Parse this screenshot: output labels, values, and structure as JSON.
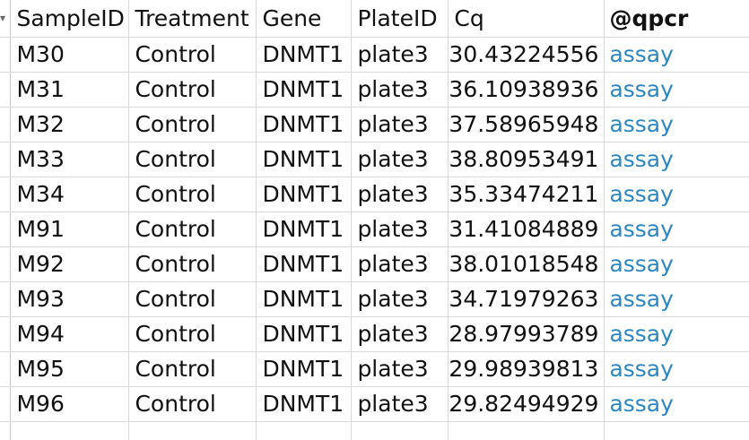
{
  "sheet": {
    "row_header_marker": "▾",
    "columns": [
      "SampleID",
      "Treatment",
      "Gene",
      "PlateID",
      "Cq",
      "@qpcr"
    ],
    "rows": [
      {
        "sample_id": "M30",
        "treatment": "Control",
        "gene": "DNMT1",
        "plate_id": "plate3",
        "cq": "30.43224556",
        "link": "assay"
      },
      {
        "sample_id": "M31",
        "treatment": "Control",
        "gene": "DNMT1",
        "plate_id": "plate3",
        "cq": "36.10938936",
        "link": "assay"
      },
      {
        "sample_id": "M32",
        "treatment": "Control",
        "gene": "DNMT1",
        "plate_id": "plate3",
        "cq": "37.58965948",
        "link": "assay"
      },
      {
        "sample_id": "M33",
        "treatment": "Control",
        "gene": "DNMT1",
        "plate_id": "plate3",
        "cq": "38.80953491",
        "link": "assay"
      },
      {
        "sample_id": "M34",
        "treatment": "Control",
        "gene": "DNMT1",
        "plate_id": "plate3",
        "cq": "35.33474211",
        "link": "assay"
      },
      {
        "sample_id": "M91",
        "treatment": "Control",
        "gene": "DNMT1",
        "plate_id": "plate3",
        "cq": "31.41084889",
        "link": "assay"
      },
      {
        "sample_id": "M92",
        "treatment": "Control",
        "gene": "DNMT1",
        "plate_id": "plate3",
        "cq": "38.01018548",
        "link": "assay"
      },
      {
        "sample_id": "M93",
        "treatment": "Control",
        "gene": "DNMT1",
        "plate_id": "plate3",
        "cq": "34.71979263",
        "link": "assay"
      },
      {
        "sample_id": "M94",
        "treatment": "Control",
        "gene": "DNMT1",
        "plate_id": "plate3",
        "cq": "28.97993789",
        "link": "assay"
      },
      {
        "sample_id": "M95",
        "treatment": "Control",
        "gene": "DNMT1",
        "plate_id": "plate3",
        "cq": "29.98939813",
        "link": "assay"
      },
      {
        "sample_id": "M96",
        "treatment": "Control",
        "gene": "DNMT1",
        "plate_id": "plate3",
        "cq": "29.82494929",
        "link": "assay"
      }
    ]
  },
  "colors": {
    "link": "#2e86c1",
    "gridline": "#d9d9d9"
  }
}
